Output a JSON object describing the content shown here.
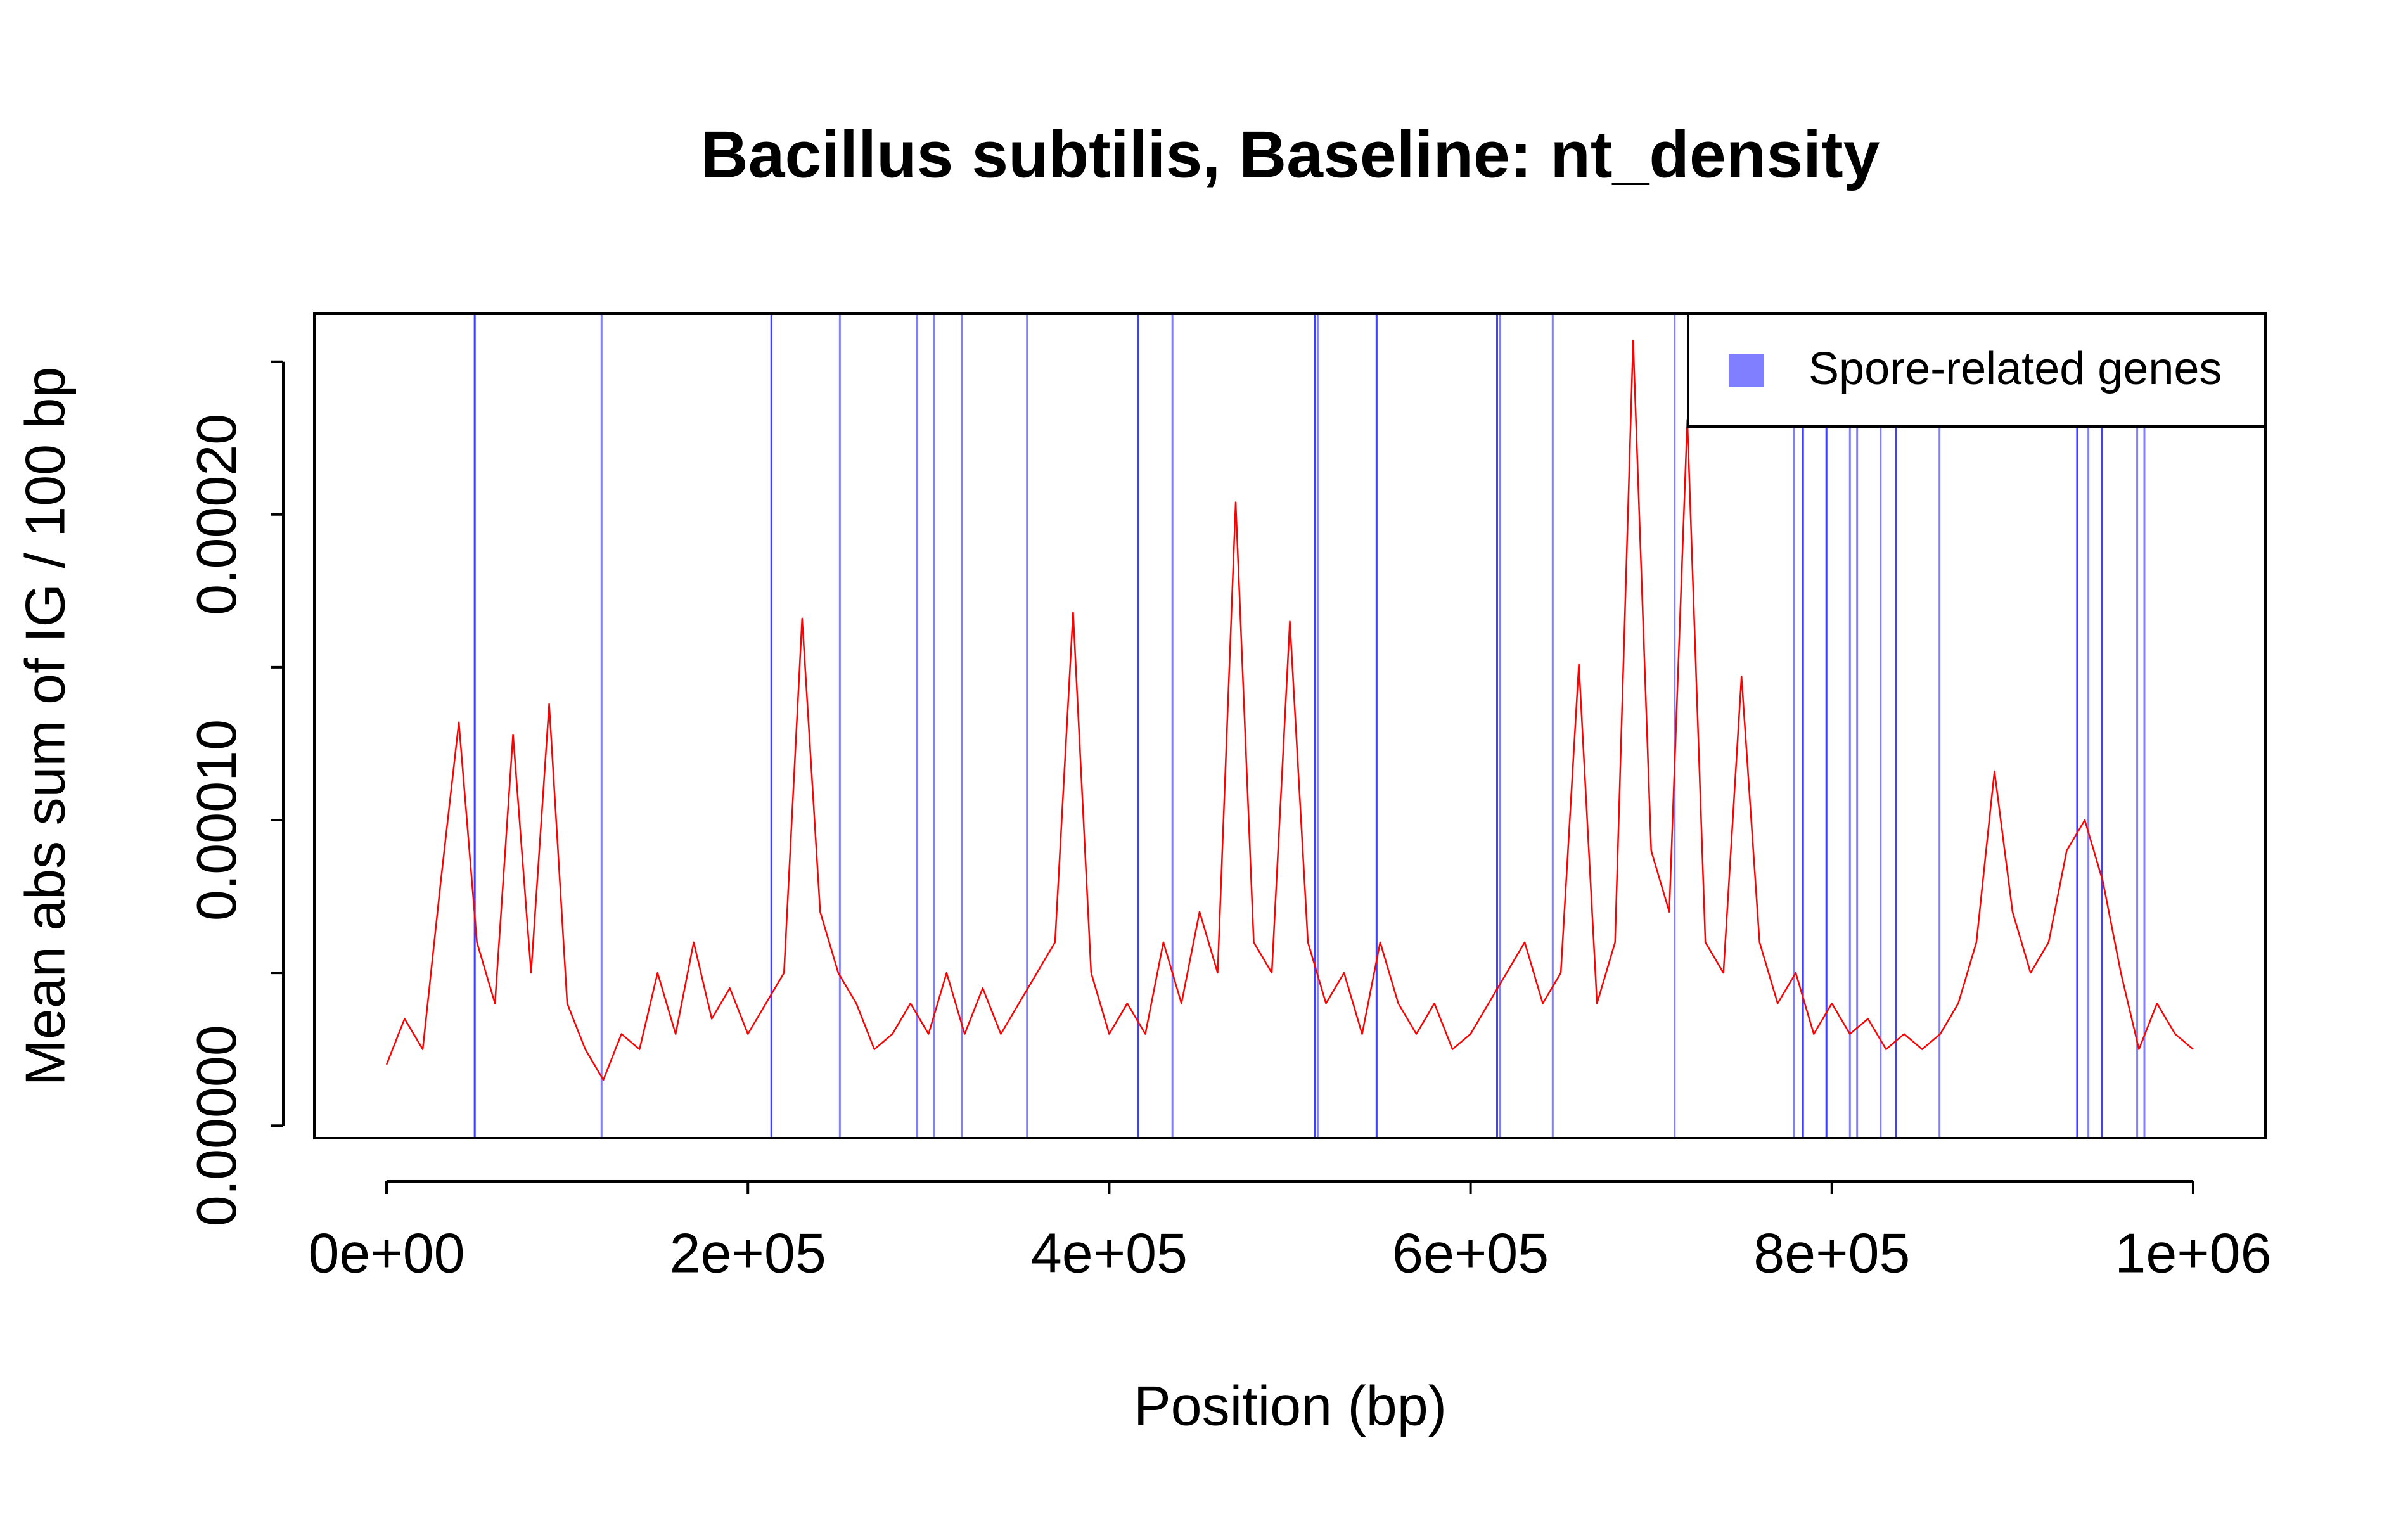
{
  "chart_data": {
    "type": "line",
    "title": "Bacillus subtilis, Baseline: nt_density",
    "xlabel": "Position (bp)",
    "ylabel": "Mean abs sum of IG / 100 bp",
    "color": "#FF0000",
    "x": [
      0,
      10000,
      20000,
      30000,
      40000,
      50000,
      60000,
      70000,
      80000,
      90000,
      100000,
      110000,
      120000,
      130000,
      140000,
      150000,
      160000,
      170000,
      180000,
      190000,
      200000,
      210000,
      220000,
      230000,
      240000,
      250000,
      260000,
      270000,
      280000,
      290000,
      300000,
      310000,
      320000,
      330000,
      340000,
      350000,
      360000,
      370000,
      380000,
      390000,
      400000,
      410000,
      420000,
      430000,
      440000,
      450000,
      460000,
      470000,
      480000,
      490000,
      500000,
      510000,
      520000,
      530000,
      540000,
      550000,
      560000,
      570000,
      580000,
      590000,
      600000,
      610000,
      620000,
      630000,
      640000,
      650000,
      660000,
      670000,
      680000,
      690000,
      700000,
      710000,
      720000,
      730000,
      740000,
      750000,
      760000,
      770000,
      780000,
      790000,
      800000,
      810000,
      820000,
      830000,
      840000,
      850000,
      860000,
      870000,
      880000,
      890000,
      900000,
      910000,
      920000,
      930000,
      940000,
      950000,
      960000,
      970000,
      980000,
      990000,
      1000000
    ],
    "values": [
      2e-05,
      3.5e-05,
      2.5e-05,
      8e-05,
      0.000132,
      6e-05,
      4e-05,
      0.000128,
      5e-05,
      0.000138,
      4e-05,
      2.5e-05,
      1.5e-05,
      3e-05,
      2.5e-05,
      5e-05,
      3e-05,
      6e-05,
      3.5e-05,
      4.5e-05,
      3e-05,
      4e-05,
      5e-05,
      0.000166,
      7e-05,
      5e-05,
      4e-05,
      2.5e-05,
      3e-05,
      4e-05,
      3e-05,
      5e-05,
      3e-05,
      4.5e-05,
      3e-05,
      4e-05,
      5e-05,
      6e-05,
      0.000168,
      5e-05,
      3e-05,
      4e-05,
      3e-05,
      6e-05,
      4e-05,
      7e-05,
      5e-05,
      0.000204,
      6e-05,
      5e-05,
      0.000165,
      6e-05,
      4e-05,
      5e-05,
      3e-05,
      6e-05,
      4e-05,
      3e-05,
      4e-05,
      2.5e-05,
      3e-05,
      4e-05,
      5e-05,
      6e-05,
      4e-05,
      5e-05,
      0.000151,
      4e-05,
      6e-05,
      0.000257,
      9e-05,
      7e-05,
      0.000231,
      6e-05,
      5e-05,
      0.000147,
      6e-05,
      4e-05,
      5e-05,
      3e-05,
      4e-05,
      3e-05,
      3.5e-05,
      2.5e-05,
      3e-05,
      2.5e-05,
      3e-05,
      4e-05,
      6e-05,
      0.000116,
      7e-05,
      5e-05,
      6e-05,
      9e-05,
      0.0001,
      8e-05,
      5e-05,
      2.5e-05,
      4e-05,
      3e-05,
      2.5e-05
    ],
    "xlim": [
      -40000,
      1040000
    ],
    "ylim": [
      -4.1e-06,
      0.0002657
    ],
    "xticks": [
      {
        "value": 0,
        "label": "0e+00"
      },
      {
        "value": 200000,
        "label": "2e+05"
      },
      {
        "value": 400000,
        "label": "4e+05"
      },
      {
        "value": 600000,
        "label": "6e+05"
      },
      {
        "value": 800000,
        "label": "8e+05"
      },
      {
        "value": 1000000,
        "label": "1e+06"
      }
    ],
    "yticks": [
      {
        "value": 0,
        "label": "0.00000"
      },
      {
        "value": 0.0001,
        "label": "0.00010"
      },
      {
        "value": 0.0002,
        "label": "0.00020"
      }
    ],
    "yticks_minor": [
      5e-05,
      0.00015,
      0.00025
    ],
    "gene_lines": {
      "name": "Spore-related genes",
      "color": "#0000FF",
      "alpha": 0.5,
      "x": [
        48800,
        48800,
        119000,
        213000,
        213000,
        250900,
        293700,
        303000,
        318500,
        354500,
        416000,
        416000,
        435000,
        513700,
        513700,
        515400,
        548000,
        548000,
        614700,
        614700,
        616400,
        645500,
        713000,
        779000,
        784000,
        784000,
        797000,
        797000,
        810000,
        814000,
        827000,
        835600,
        835600,
        859600,
        935800,
        935800,
        942000,
        949500,
        949500,
        969000,
        973000
      ],
      "legend": "topright"
    }
  }
}
